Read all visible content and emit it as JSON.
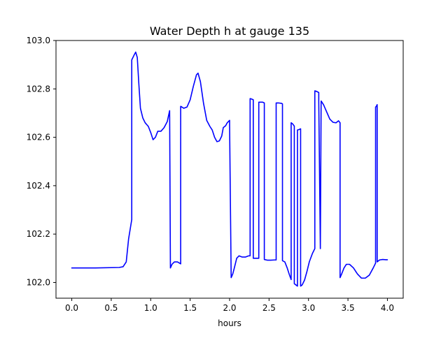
{
  "chart_data": {
    "type": "line",
    "title": "Water Depth h at gauge 135",
    "xlabel": "hours",
    "ylabel": "",
    "xlim": [
      -0.2,
      4.2
    ],
    "ylim": [
      101.935,
      103.0
    ],
    "x_ticks": [
      0.0,
      0.5,
      1.0,
      1.5,
      2.0,
      2.5,
      3.0,
      3.5,
      4.0
    ],
    "x_tick_labels": [
      "0.0",
      "0.5",
      "1.0",
      "1.5",
      "2.0",
      "2.5",
      "3.0",
      "3.5",
      "4.0"
    ],
    "y_ticks": [
      102.0,
      102.2,
      102.4,
      102.6,
      102.8,
      103.0
    ],
    "y_tick_labels": [
      "102.0",
      "102.2",
      "102.4",
      "102.6",
      "102.8",
      "103.0"
    ],
    "grid": false,
    "legend": "none",
    "series": [
      {
        "color": "#0000ff",
        "points": [
          [
            0.0,
            102.06
          ],
          [
            0.3,
            102.06
          ],
          [
            0.6,
            102.062
          ],
          [
            0.65,
            102.065
          ],
          [
            0.69,
            102.085
          ],
          [
            0.72,
            102.18
          ],
          [
            0.76,
            102.26
          ],
          [
            0.76,
            102.92
          ],
          [
            0.79,
            102.94
          ],
          [
            0.81,
            102.952
          ],
          [
            0.83,
            102.93
          ],
          [
            0.85,
            102.82
          ],
          [
            0.87,
            102.72
          ],
          [
            0.9,
            102.68
          ],
          [
            0.93,
            102.66
          ],
          [
            0.97,
            102.645
          ],
          [
            1.0,
            102.62
          ],
          [
            1.03,
            102.59
          ],
          [
            1.06,
            102.6
          ],
          [
            1.09,
            102.625
          ],
          [
            1.13,
            102.625
          ],
          [
            1.17,
            102.64
          ],
          [
            1.21,
            102.665
          ],
          [
            1.24,
            102.71
          ],
          [
            1.25,
            102.06
          ],
          [
            1.27,
            102.075
          ],
          [
            1.3,
            102.085
          ],
          [
            1.34,
            102.085
          ],
          [
            1.38,
            102.077
          ],
          [
            1.38,
            102.728
          ],
          [
            1.42,
            102.72
          ],
          [
            1.46,
            102.725
          ],
          [
            1.5,
            102.755
          ],
          [
            1.54,
            102.81
          ],
          [
            1.58,
            102.858
          ],
          [
            1.6,
            102.865
          ],
          [
            1.63,
            102.83
          ],
          [
            1.67,
            102.74
          ],
          [
            1.71,
            102.67
          ],
          [
            1.75,
            102.645
          ],
          [
            1.78,
            102.63
          ],
          [
            1.81,
            102.6
          ],
          [
            1.84,
            102.582
          ],
          [
            1.87,
            102.585
          ],
          [
            1.9,
            102.605
          ],
          [
            1.92,
            102.64
          ],
          [
            1.95,
            102.648
          ],
          [
            1.97,
            102.66
          ],
          [
            2.0,
            102.67
          ],
          [
            2.0,
            102.65
          ],
          [
            2.02,
            102.02
          ],
          [
            2.04,
            102.035
          ],
          [
            2.06,
            102.06
          ],
          [
            2.09,
            102.1
          ],
          [
            2.12,
            102.11
          ],
          [
            2.16,
            102.105
          ],
          [
            2.2,
            102.105
          ],
          [
            2.24,
            102.11
          ],
          [
            2.26,
            102.11
          ],
          [
            2.26,
            102.76
          ],
          [
            2.28,
            102.758
          ],
          [
            2.3,
            102.755
          ],
          [
            2.3,
            102.1
          ],
          [
            2.35,
            102.1
          ],
          [
            2.37,
            102.1
          ],
          [
            2.37,
            102.745
          ],
          [
            2.39,
            102.745
          ],
          [
            2.42,
            102.745
          ],
          [
            2.44,
            102.742
          ],
          [
            2.44,
            102.095
          ],
          [
            2.48,
            102.092
          ],
          [
            2.52,
            102.092
          ],
          [
            2.57,
            102.093
          ],
          [
            2.59,
            102.093
          ],
          [
            2.59,
            102.742
          ],
          [
            2.62,
            102.742
          ],
          [
            2.66,
            102.74
          ],
          [
            2.67,
            102.738
          ],
          [
            2.67,
            102.09
          ],
          [
            2.7,
            102.085
          ],
          [
            2.73,
            102.06
          ],
          [
            2.76,
            102.03
          ],
          [
            2.78,
            102.012
          ],
          [
            2.78,
            102.66
          ],
          [
            2.8,
            102.655
          ],
          [
            2.82,
            102.646
          ],
          [
            2.82,
            101.995
          ],
          [
            2.84,
            101.99
          ],
          [
            2.86,
            101.985
          ],
          [
            2.86,
            102.63
          ],
          [
            2.88,
            102.632
          ],
          [
            2.9,
            102.635
          ],
          [
            2.9,
            101.985
          ],
          [
            2.92,
            101.99
          ],
          [
            2.95,
            102.01
          ],
          [
            2.98,
            102.045
          ],
          [
            3.01,
            102.085
          ],
          [
            3.05,
            102.12
          ],
          [
            3.08,
            102.14
          ],
          [
            3.08,
            102.792
          ],
          [
            3.1,
            102.79
          ],
          [
            3.13,
            102.785
          ],
          [
            3.13,
            102.75
          ],
          [
            3.15,
            102.14
          ],
          [
            3.16,
            102.75
          ],
          [
            3.19,
            102.735
          ],
          [
            3.23,
            102.705
          ],
          [
            3.27,
            102.675
          ],
          [
            3.31,
            102.662
          ],
          [
            3.35,
            102.66
          ],
          [
            3.38,
            102.668
          ],
          [
            3.4,
            102.66
          ],
          [
            3.4,
            102.02
          ],
          [
            3.42,
            102.035
          ],
          [
            3.45,
            102.06
          ],
          [
            3.48,
            102.075
          ],
          [
            3.52,
            102.075
          ],
          [
            3.57,
            102.06
          ],
          [
            3.62,
            102.035
          ],
          [
            3.67,
            102.018
          ],
          [
            3.72,
            102.018
          ],
          [
            3.77,
            102.03
          ],
          [
            3.82,
            102.06
          ],
          [
            3.85,
            102.08
          ],
          [
            3.85,
            102.725
          ],
          [
            3.86,
            102.728
          ],
          [
            3.87,
            102.735
          ],
          [
            3.87,
            102.085
          ],
          [
            3.9,
            102.093
          ],
          [
            3.94,
            102.095
          ],
          [
            3.98,
            102.094
          ],
          [
            4.0,
            102.094
          ]
        ]
      }
    ]
  }
}
